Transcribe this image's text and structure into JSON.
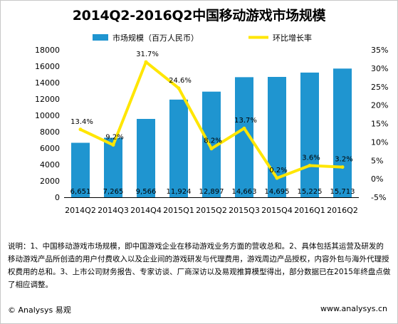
{
  "chart_data": {
    "type": "bar",
    "title": "2014Q2-2016Q2中国移动游戏市场规模",
    "categories": [
      "2014Q2",
      "2014Q3",
      "2014Q4",
      "2015Q1",
      "2015Q2",
      "2015Q3",
      "2015Q4",
      "2016Q1",
      "2016Q2"
    ],
    "series": [
      {
        "name": "市场规模（百万人民币）",
        "type": "bar",
        "axis": "left",
        "color": "#1f95d0",
        "values": [
          6651,
          7265,
          9566,
          11924,
          12897,
          14663,
          14695,
          15225,
          15713
        ],
        "labels": [
          "6,651",
          "7,265",
          "9,566",
          "11,924",
          "12,897",
          "14,663",
          "14,695",
          "15,225",
          "15,713"
        ]
      },
      {
        "name": "环比增长率",
        "type": "line",
        "axis": "right",
        "color": "#ffe600",
        "values": [
          13.4,
          9.2,
          31.7,
          24.6,
          8.2,
          13.7,
          0.2,
          3.6,
          3.2
        ],
        "labels": [
          "13.4%",
          "9.2%",
          "31.7%",
          "24.6%",
          "8.2%",
          "13.7%",
          "0.2%",
          "3.6%",
          "3.2%"
        ]
      }
    ],
    "ylim_left": [
      0,
      18000
    ],
    "yticks_left": [
      "0",
      "2000",
      "4000",
      "6000",
      "8000",
      "10000",
      "12000",
      "14000",
      "16000",
      "18000"
    ],
    "ylim_right": [
      -5,
      35
    ],
    "yticks_right": [
      "-5%",
      "0%",
      "5%",
      "10%",
      "15%",
      "20%",
      "25%",
      "30%",
      "35%"
    ],
    "grid": false,
    "legend_position": "top"
  },
  "note": "说明：1、中国移动游戏市场规模，即中国游戏企业在移动游戏业务方面的营收总和。2、具体包括其运营及研发的移动游戏产品所创造的用户付费收入以及企业间的游戏研发与代理费用，游戏周边产品授权，内容外包与海外代理授权费用的总和。3、上市公司财务报告、专家访谈、厂商深访以及易观推算模型得出，部分数据已在2015年终盘点做了相应调整。",
  "footer": {
    "left": "© Analysys 易观",
    "right": "www.analysys.cn"
  }
}
